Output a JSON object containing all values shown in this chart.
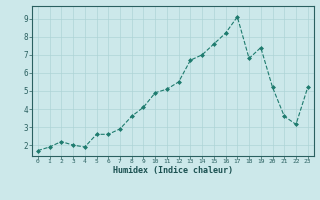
{
  "x": [
    0,
    1,
    2,
    3,
    4,
    5,
    6,
    7,
    8,
    9,
    10,
    11,
    12,
    13,
    14,
    15,
    16,
    17,
    18,
    19,
    20,
    21,
    22,
    23
  ],
  "y": [
    1.7,
    1.9,
    2.2,
    2.0,
    1.9,
    2.6,
    2.6,
    2.9,
    3.6,
    4.1,
    4.9,
    5.1,
    5.5,
    6.7,
    7.0,
    7.6,
    8.2,
    9.1,
    6.8,
    7.4,
    5.2,
    3.6,
    3.15,
    5.2
  ],
  "xlabel": "Humidex (Indice chaleur)",
  "xlim": [
    -0.5,
    23.5
  ],
  "ylim": [
    1.4,
    9.7
  ],
  "yticks": [
    2,
    3,
    4,
    5,
    6,
    7,
    8,
    9
  ],
  "xticks": [
    0,
    1,
    2,
    3,
    4,
    5,
    6,
    7,
    8,
    9,
    10,
    11,
    12,
    13,
    14,
    15,
    16,
    17,
    18,
    19,
    20,
    21,
    22,
    23
  ],
  "line_color": "#1e7b6e",
  "bg_color": "#cce8ea",
  "grid_color": "#aed4d6",
  "spine_color": "#2a6060",
  "tick_label_color": "#1a5050",
  "xlabel_color": "#1a5050"
}
